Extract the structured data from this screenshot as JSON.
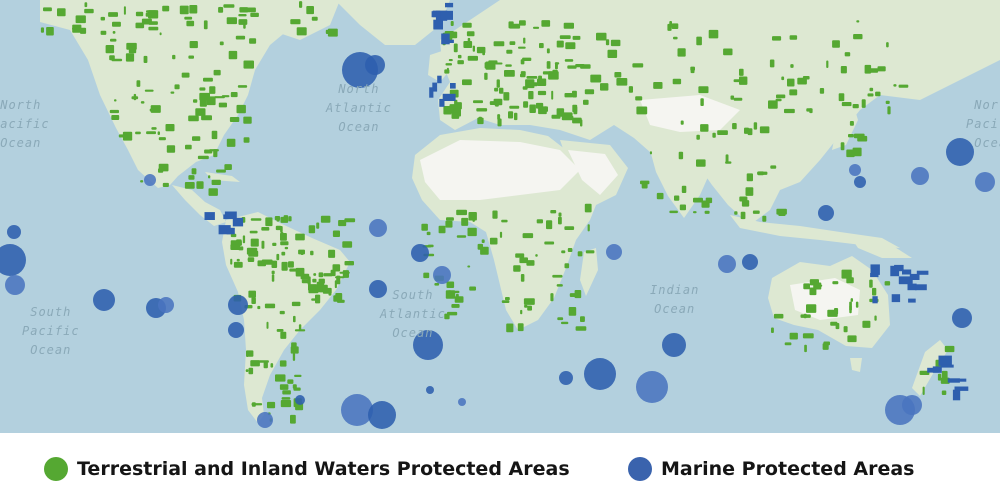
{
  "colors": {
    "ocean": "#b3d0de",
    "land": "#dde8d2",
    "land_light": "#eef2e6",
    "desert": "#f5f5f1",
    "terrestrial": "#55a832",
    "marine": "#2e5fae",
    "marine_light": "#4a74bf"
  },
  "ocean_labels": {
    "north_pacific_left": "North\nPacific\nOcean",
    "north_atlantic": "North\nAtlantic\nOcean",
    "north_pacific_right": "North\nPacific\nOcean",
    "south_pacific": "South\nPacific\nOcean",
    "south_atlantic": "South\nAtlantic\nOcean",
    "indian": "Indian\nOcean"
  },
  "legend": {
    "terrestrial": {
      "label": "Terrestrial and Inland Waters Protected Areas",
      "icon": "green-circle-icon"
    },
    "marine": {
      "label": "Marine Protected Areas",
      "icon": "blue-circle-icon"
    }
  }
}
